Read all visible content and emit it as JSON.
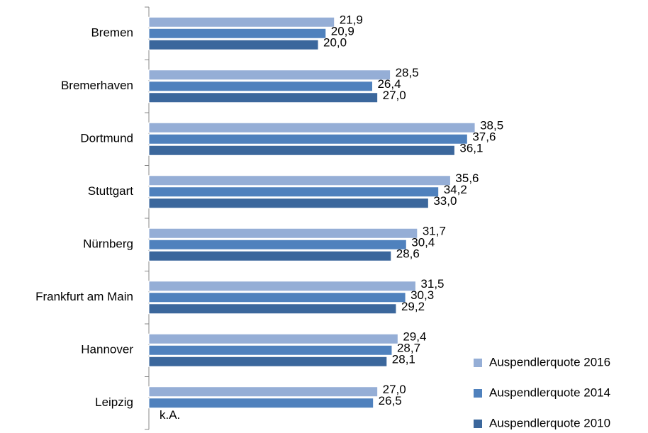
{
  "chart_data": {
    "type": "hbar",
    "categories": [
      "Bremen",
      "Bremerhaven",
      "Dortmund",
      "Stuttgart",
      "Nürnberg",
      "Frankfurt am Main",
      "Hannover",
      "Leipzig"
    ],
    "series": [
      {
        "name": "Auspendlerquote 2016",
        "color": "#95aed6",
        "values": [
          21.9,
          28.5,
          38.5,
          35.6,
          31.7,
          31.5,
          29.4,
          27.0
        ],
        "value_labels": [
          "21,9",
          "28,5",
          "38,5",
          "35,6",
          "31,7",
          "31,5",
          "29,4",
          "27,0"
        ]
      },
      {
        "name": "Auspendlerquote 2014",
        "color": "#4f81bd",
        "values": [
          20.9,
          26.4,
          37.6,
          34.2,
          30.4,
          30.3,
          28.7,
          26.5
        ],
        "value_labels": [
          "20,9",
          "26,4",
          "37,6",
          "34,2",
          "30,4",
          "30,3",
          "28,7",
          "26,5"
        ]
      },
      {
        "name": "Auspendlerquote 2010",
        "color": "#3b679c",
        "values": [
          20.0,
          27.0,
          36.1,
          33.0,
          28.6,
          29.2,
          28.1,
          null
        ],
        "value_labels": [
          "20,0",
          "27,0",
          "36,1",
          "33,0",
          "28,6",
          "29,2",
          "28,1",
          "k.A."
        ]
      }
    ],
    "xlim": [
      0,
      40
    ],
    "legend": "bottom-right"
  }
}
